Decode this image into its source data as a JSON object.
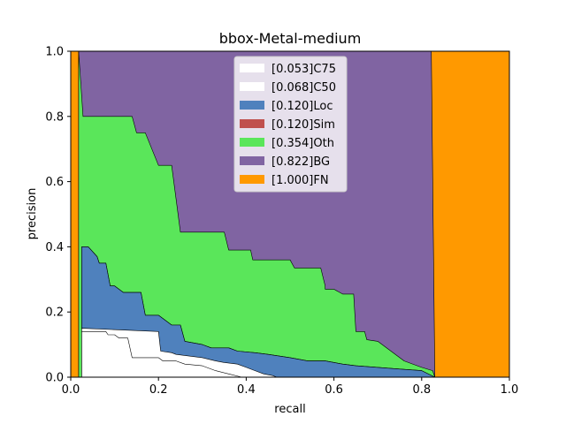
{
  "chart_data": {
    "type": "area",
    "title": "bbox-Metal-medium",
    "xlabel": "recall",
    "ylabel": "precision",
    "xlim": [
      0,
      1
    ],
    "ylim": [
      0,
      1
    ],
    "xticks": [
      "0.0",
      "0.2",
      "0.4",
      "0.6",
      "0.8",
      "1.0"
    ],
    "yticks": [
      "0.0",
      "0.2",
      "0.4",
      "0.6",
      "0.8",
      "1.0"
    ],
    "grid": false,
    "legend_position": "top-center",
    "series": [
      {
        "name": "[1.000]FN",
        "color": "#ff9900",
        "points": [
          [
            0.0,
            1.0
          ],
          [
            1.0,
            1.0
          ],
          [
            1.0,
            0.0
          ],
          [
            0.0,
            0.0
          ]
        ]
      },
      {
        "name": "[0.822]BG",
        "color": "#8064a2",
        "points": [
          [
            0.018,
            1.0
          ],
          [
            0.822,
            1.0
          ],
          [
            0.83,
            0.0
          ],
          [
            0.018,
            0.0
          ]
        ]
      },
      {
        "name": "[0.354]Oth",
        "color": "#5ae65a",
        "points": [
          [
            0.018,
            1.0
          ],
          [
            0.022,
            0.92
          ],
          [
            0.028,
            0.8
          ],
          [
            0.14,
            0.8
          ],
          [
            0.15,
            0.75
          ],
          [
            0.17,
            0.75
          ],
          [
            0.2,
            0.65
          ],
          [
            0.23,
            0.65
          ],
          [
            0.25,
            0.445
          ],
          [
            0.35,
            0.445
          ],
          [
            0.36,
            0.39
          ],
          [
            0.41,
            0.39
          ],
          [
            0.415,
            0.36
          ],
          [
            0.5,
            0.36
          ],
          [
            0.51,
            0.335
          ],
          [
            0.57,
            0.335
          ],
          [
            0.58,
            0.28
          ],
          [
            0.58,
            0.27
          ],
          [
            0.6,
            0.27
          ],
          [
            0.62,
            0.255
          ],
          [
            0.645,
            0.255
          ],
          [
            0.65,
            0.14
          ],
          [
            0.67,
            0.14
          ],
          [
            0.675,
            0.115
          ],
          [
            0.7,
            0.11
          ],
          [
            0.76,
            0.05
          ],
          [
            0.8,
            0.03
          ],
          [
            0.825,
            0.02
          ],
          [
            0.83,
            0.0
          ],
          [
            0.018,
            0.0
          ]
        ]
      },
      {
        "name": "[0.120]Sim",
        "color": "#c0504d",
        "points": [
          [
            0.025,
            0.4
          ],
          [
            0.04,
            0.4
          ],
          [
            0.06,
            0.37
          ],
          [
            0.065,
            0.35
          ],
          [
            0.08,
            0.35
          ],
          [
            0.09,
            0.28
          ],
          [
            0.1,
            0.28
          ],
          [
            0.12,
            0.26
          ],
          [
            0.16,
            0.26
          ],
          [
            0.17,
            0.19
          ],
          [
            0.2,
            0.19
          ],
          [
            0.23,
            0.16
          ],
          [
            0.25,
            0.16
          ],
          [
            0.26,
            0.11
          ],
          [
            0.3,
            0.1
          ],
          [
            0.32,
            0.09
          ],
          [
            0.36,
            0.09
          ],
          [
            0.38,
            0.08
          ],
          [
            0.42,
            0.075
          ],
          [
            0.45,
            0.07
          ],
          [
            0.5,
            0.06
          ],
          [
            0.54,
            0.05
          ],
          [
            0.58,
            0.05
          ],
          [
            0.62,
            0.04
          ],
          [
            0.65,
            0.035
          ],
          [
            0.7,
            0.03
          ],
          [
            0.75,
            0.025
          ],
          [
            0.8,
            0.02
          ],
          [
            0.83,
            0.0
          ],
          [
            0.025,
            0.0
          ]
        ]
      },
      {
        "name": "[0.120]Loc",
        "color": "#4f81bd",
        "points": [
          [
            0.025,
            0.4
          ],
          [
            0.04,
            0.4
          ],
          [
            0.06,
            0.37
          ],
          [
            0.065,
            0.35
          ],
          [
            0.08,
            0.35
          ],
          [
            0.09,
            0.28
          ],
          [
            0.1,
            0.28
          ],
          [
            0.12,
            0.26
          ],
          [
            0.16,
            0.26
          ],
          [
            0.17,
            0.19
          ],
          [
            0.2,
            0.19
          ],
          [
            0.23,
            0.16
          ],
          [
            0.25,
            0.16
          ],
          [
            0.26,
            0.11
          ],
          [
            0.3,
            0.1
          ],
          [
            0.32,
            0.09
          ],
          [
            0.36,
            0.09
          ],
          [
            0.38,
            0.08
          ],
          [
            0.42,
            0.075
          ],
          [
            0.45,
            0.07
          ],
          [
            0.5,
            0.06
          ],
          [
            0.54,
            0.05
          ],
          [
            0.58,
            0.05
          ],
          [
            0.62,
            0.04
          ],
          [
            0.65,
            0.035
          ],
          [
            0.7,
            0.03
          ],
          [
            0.75,
            0.025
          ],
          [
            0.8,
            0.02
          ],
          [
            0.83,
            0.0
          ],
          [
            0.025,
            0.0
          ]
        ]
      },
      {
        "name": "[0.068]C50",
        "color": "#ffffff",
        "points": [
          [
            0.025,
            0.15
          ],
          [
            0.2,
            0.14
          ],
          [
            0.205,
            0.08
          ],
          [
            0.23,
            0.075
          ],
          [
            0.24,
            0.07
          ],
          [
            0.3,
            0.06
          ],
          [
            0.33,
            0.05
          ],
          [
            0.35,
            0.045
          ],
          [
            0.38,
            0.04
          ],
          [
            0.4,
            0.03
          ],
          [
            0.42,
            0.02
          ],
          [
            0.44,
            0.01
          ],
          [
            0.46,
            0.005
          ],
          [
            0.47,
            0.0
          ],
          [
            0.025,
            0.0
          ]
        ]
      },
      {
        "name": "[0.053]C75",
        "color": "#ffffff",
        "points": [
          [
            0.025,
            0.14
          ],
          [
            0.08,
            0.14
          ],
          [
            0.085,
            0.13
          ],
          [
            0.1,
            0.13
          ],
          [
            0.11,
            0.12
          ],
          [
            0.13,
            0.12
          ],
          [
            0.14,
            0.06
          ],
          [
            0.2,
            0.06
          ],
          [
            0.21,
            0.05
          ],
          [
            0.24,
            0.05
          ],
          [
            0.26,
            0.04
          ],
          [
            0.3,
            0.035
          ],
          [
            0.33,
            0.02
          ],
          [
            0.36,
            0.01
          ],
          [
            0.39,
            0.0
          ],
          [
            0.025,
            0.0
          ]
        ]
      }
    ],
    "legend": [
      {
        "label": "[0.053]C75",
        "color": "#ffffff"
      },
      {
        "label": "[0.068]C50",
        "color": "#ffffff"
      },
      {
        "label": "[0.120]Loc",
        "color": "#4f81bd"
      },
      {
        "label": "[0.120]Sim",
        "color": "#c0504d"
      },
      {
        "label": "[0.354]Oth",
        "color": "#5ae65a"
      },
      {
        "label": "[0.822]BG",
        "color": "#8064a2"
      },
      {
        "label": "[1.000]FN",
        "color": "#ff9900"
      }
    ]
  }
}
